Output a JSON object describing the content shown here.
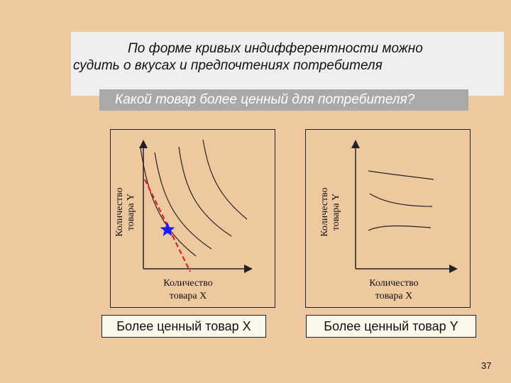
{
  "slide": {
    "title_line1": "По форме кривых индифферентности можно",
    "title_line2": "судить о вкусах и предпочтениях потребителя",
    "question": "Какой товар более ценный для потребителя?",
    "page_number": "37"
  },
  "left_panel": {
    "y_label_line1": "Количество",
    "y_label_line2": "товара Y",
    "x_label_line1": "Количество",
    "x_label_line2": "товара  X",
    "caption": "Более ценный товар X",
    "marker_icon": "star-icon",
    "marker_color": "#1a1aff",
    "budget_line_color": "#e02020"
  },
  "right_panel": {
    "y_label_line1": "Количество",
    "y_label_line2": "товара Y",
    "x_label_line1": "Количество",
    "x_label_line2": "товара  X",
    "caption": "Более ценный товар Y"
  }
}
